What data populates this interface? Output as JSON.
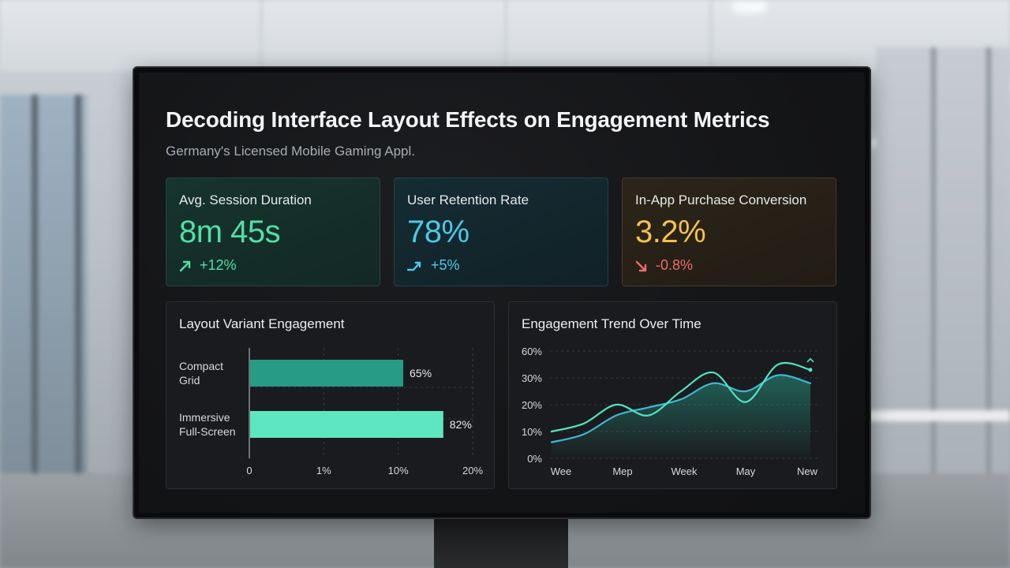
{
  "dashboard": {
    "title": "Decoding Interface Layout Effects on Engagement Metrics",
    "subtitle": "Germany's Licensed Mobile Gaming Appl."
  },
  "kpis": [
    {
      "label": "Avg. Session Duration",
      "value": "8m 45s",
      "delta": "+12%",
      "trend_icon": "trend-up-icon",
      "color": "#4fe0a6"
    },
    {
      "label": "User Retention Rate",
      "value": "78%",
      "delta": "+5%",
      "trend_icon": "trend-up-icon",
      "color": "#4cc9e8"
    },
    {
      "label": "In-App Purchase Conversion",
      "value": "3.2%",
      "delta": "-0.8%",
      "trend_icon": "trend-down-icon",
      "color": "#f2c14e",
      "delta_color": "#ef6b6b"
    }
  ],
  "chart_data": [
    {
      "type": "bar",
      "title": "Layout Variant Engagement",
      "orientation": "horizontal",
      "categories": [
        [
          "Compact",
          "Grid"
        ],
        [
          "Immersive",
          "Full-Screen"
        ]
      ],
      "values": [
        65,
        82
      ],
      "value_labels": [
        "65%",
        "82%"
      ],
      "x_ticks": [
        "0",
        "1%",
        "10%",
        "20%"
      ],
      "colors": [
        "#279b86",
        "#5ee6c0"
      ],
      "grid": true
    },
    {
      "type": "area",
      "title": "Engagement Trend Over Time",
      "x_labels": [
        "Wee",
        "Mep",
        "Week",
        "May",
        "New"
      ],
      "y_ticks": [
        "60%",
        "30%",
        "20%",
        "10%",
        "0%"
      ],
      "grid": true,
      "series": [
        {
          "values": [
            10,
            13,
            20,
            16,
            25,
            32,
            21,
            35,
            33
          ],
          "color": "#4fe3c1"
        },
        {
          "values": [
            6,
            9,
            16,
            19,
            22,
            28,
            25,
            31,
            28
          ],
          "color": "#3fb9cf",
          "filled": true
        }
      ]
    }
  ]
}
